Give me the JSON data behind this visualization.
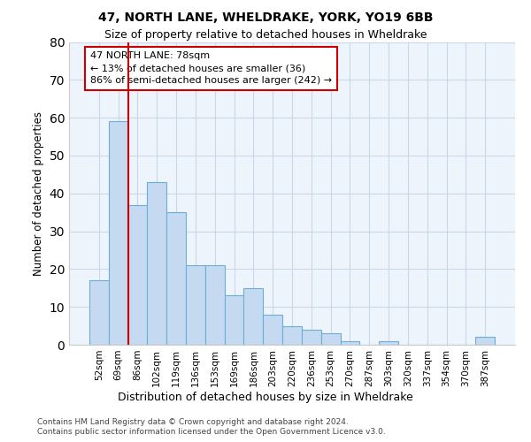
{
  "title1": "47, NORTH LANE, WHELDRAKE, YORK, YO19 6BB",
  "title2": "Size of property relative to detached houses in Wheldrake",
  "xlabel": "Distribution of detached houses by size in Wheldrake",
  "ylabel": "Number of detached properties",
  "bar_labels": [
    "52sqm",
    "69sqm",
    "86sqm",
    "102sqm",
    "119sqm",
    "136sqm",
    "153sqm",
    "169sqm",
    "186sqm",
    "203sqm",
    "220sqm",
    "236sqm",
    "253sqm",
    "270sqm",
    "287sqm",
    "303sqm",
    "320sqm",
    "337sqm",
    "354sqm",
    "370sqm",
    "387sqm"
  ],
  "bar_values": [
    17,
    59,
    37,
    43,
    35,
    21,
    21,
    13,
    15,
    8,
    5,
    4,
    3,
    1,
    0,
    1,
    0,
    0,
    0,
    0,
    2
  ],
  "bar_color": "#c5d9f0",
  "bar_edge_color": "#6baed6",
  "grid_color": "#c8d8e8",
  "bg_color": "#eef4fb",
  "vline_x": 1.5,
  "vline_color": "#cc0000",
  "annotation_text": "47 NORTH LANE: 78sqm\n← 13% of detached houses are smaller (36)\n86% of semi-detached houses are larger (242) →",
  "annotation_box_color": "white",
  "annotation_box_edge": "#cc0000",
  "ylim": [
    0,
    80
  ],
  "yticks": [
    0,
    10,
    20,
    30,
    40,
    50,
    60,
    70,
    80
  ],
  "footer1": "Contains HM Land Registry data © Crown copyright and database right 2024.",
  "footer2": "Contains public sector information licensed under the Open Government Licence v3.0."
}
